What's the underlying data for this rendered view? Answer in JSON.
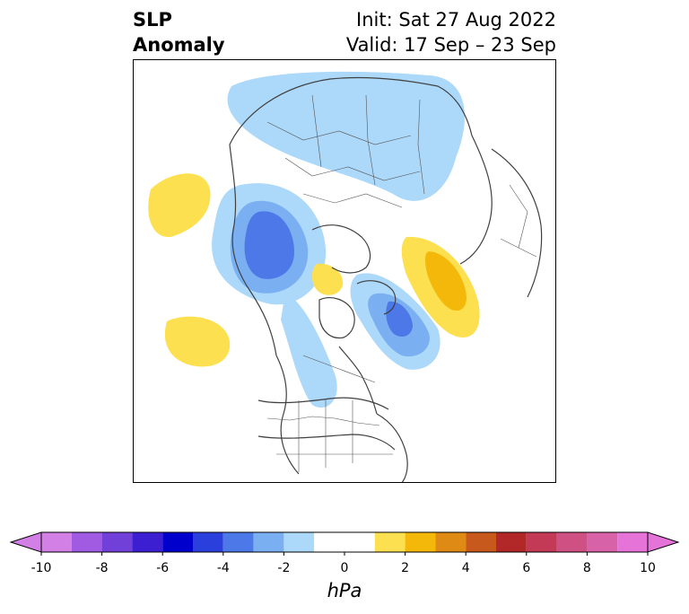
{
  "title": {
    "left_line1": "SLP",
    "left_line2": "Anomaly",
    "init": "Init: Sat 27 Aug 2022",
    "valid": "Valid: 17 Sep – 23 Sep"
  },
  "colorbar": {
    "unit_label": "hPa",
    "ticks": [
      "-10",
      "-8",
      "-6",
      "-4",
      "-2",
      "0",
      "2",
      "4",
      "6",
      "8",
      "10"
    ],
    "tick_values": [
      -10,
      -8,
      -6,
      -4,
      -2,
      0,
      2,
      4,
      6,
      8,
      10
    ],
    "bins": [
      {
        "from": -10,
        "to": -9,
        "color": "#d27fe6"
      },
      {
        "from": -9,
        "to": -8,
        "color": "#a15be2"
      },
      {
        "from": -8,
        "to": -7,
        "color": "#7040d9"
      },
      {
        "from": -7,
        "to": -6,
        "color": "#3d1fd2"
      },
      {
        "from": -6,
        "to": -5,
        "color": "#0000cc"
      },
      {
        "from": -5,
        "to": -4,
        "color": "#2b3fdd"
      },
      {
        "from": -4,
        "to": -3,
        "color": "#4d78e8"
      },
      {
        "from": -3,
        "to": -2,
        "color": "#7ab0f1"
      },
      {
        "from": -2,
        "to": -1,
        "color": "#acd8fa"
      },
      {
        "from": -1,
        "to": 1,
        "color": "#ffffff"
      },
      {
        "from": 1,
        "to": 2,
        "color": "#fde050"
      },
      {
        "from": 2,
        "to": 3,
        "color": "#f4b80a"
      },
      {
        "from": 3,
        "to": 4,
        "color": "#df8a14"
      },
      {
        "from": 4,
        "to": 5,
        "color": "#c8591c"
      },
      {
        "from": 5,
        "to": 6,
        "color": "#b22727"
      },
      {
        "from": 6,
        "to": 7,
        "color": "#c23a55"
      },
      {
        "from": 7,
        "to": 8,
        "color": "#cf5183"
      },
      {
        "from": 8,
        "to": 9,
        "color": "#d862a8"
      },
      {
        "from": 9,
        "to": 10,
        "color": "#e573d8"
      }
    ],
    "under_color": "#d27fe6",
    "over_color": "#e573d8"
  }
}
